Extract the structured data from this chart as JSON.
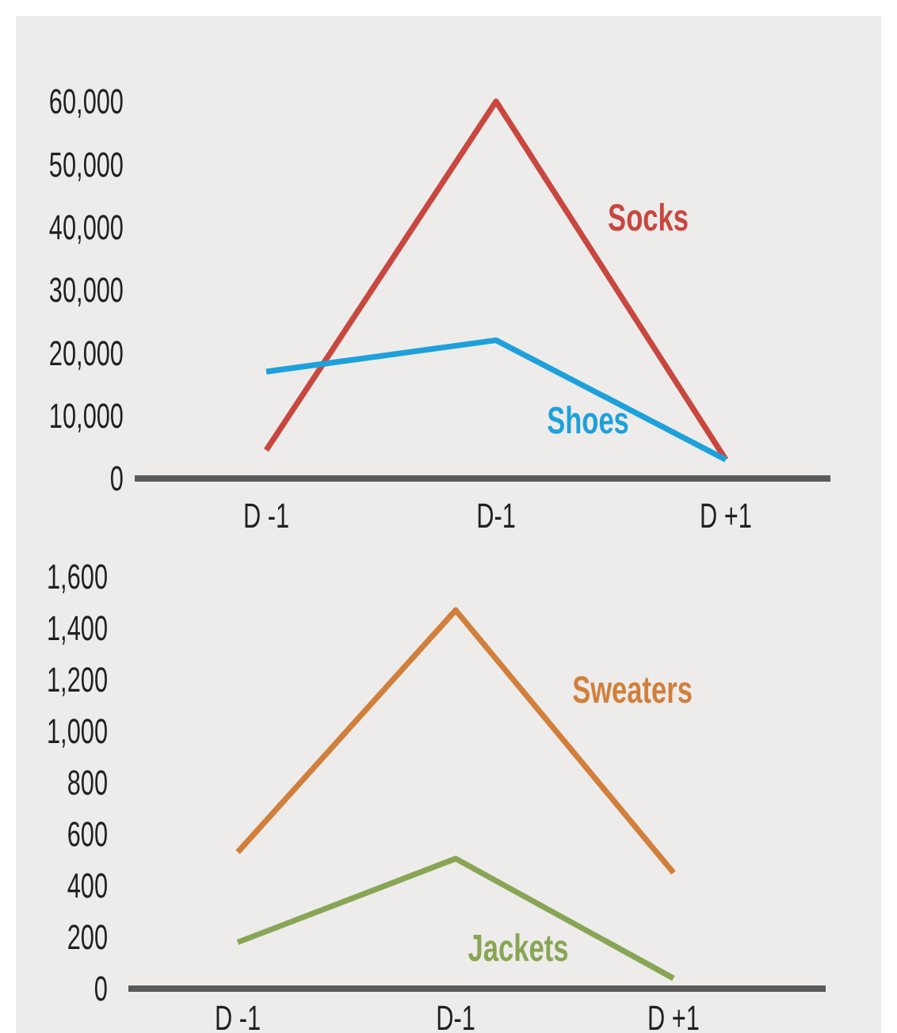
{
  "chart_data": [
    {
      "type": "line",
      "categories": [
        "D -1",
        "D-1",
        "D +1"
      ],
      "series": [
        {
          "name": "Socks",
          "color": "#c8473f",
          "values": [
            4500,
            60000,
            3000
          ]
        },
        {
          "name": "Shoes",
          "color": "#1ea1db",
          "values": [
            17000,
            22000,
            3000
          ]
        }
      ],
      "ylim": [
        0,
        60000
      ],
      "yticks": [
        {
          "value": 0,
          "label": "0"
        },
        {
          "value": 10000,
          "label": "10,000"
        },
        {
          "value": 20000,
          "label": "20,000"
        },
        {
          "value": 30000,
          "label": "30,000"
        },
        {
          "value": 40000,
          "label": "40,000"
        },
        {
          "value": 50000,
          "label": "50,000"
        },
        {
          "value": 60000,
          "label": "60,000"
        }
      ]
    },
    {
      "type": "line",
      "categories": [
        "D -1",
        "D-1",
        "D +1"
      ],
      "series": [
        {
          "name": "Sweaters",
          "color": "#d17f3c",
          "values": [
            530,
            1470,
            450
          ]
        },
        {
          "name": "Jackets",
          "color": "#88a556",
          "values": [
            180,
            505,
            40
          ]
        }
      ],
      "ylim": [
        0,
        1600
      ],
      "yticks": [
        {
          "value": 0,
          "label": "0"
        },
        {
          "value": 200,
          "label": "200"
        },
        {
          "value": 400,
          "label": "400"
        },
        {
          "value": 600,
          "label": "600"
        },
        {
          "value": 800,
          "label": "800"
        },
        {
          "value": 1000,
          "label": "1,000"
        },
        {
          "value": 1200,
          "label": "1,200"
        },
        {
          "value": 1400,
          "label": "1,400"
        },
        {
          "value": 1600,
          "label": "1,600"
        }
      ]
    }
  ]
}
